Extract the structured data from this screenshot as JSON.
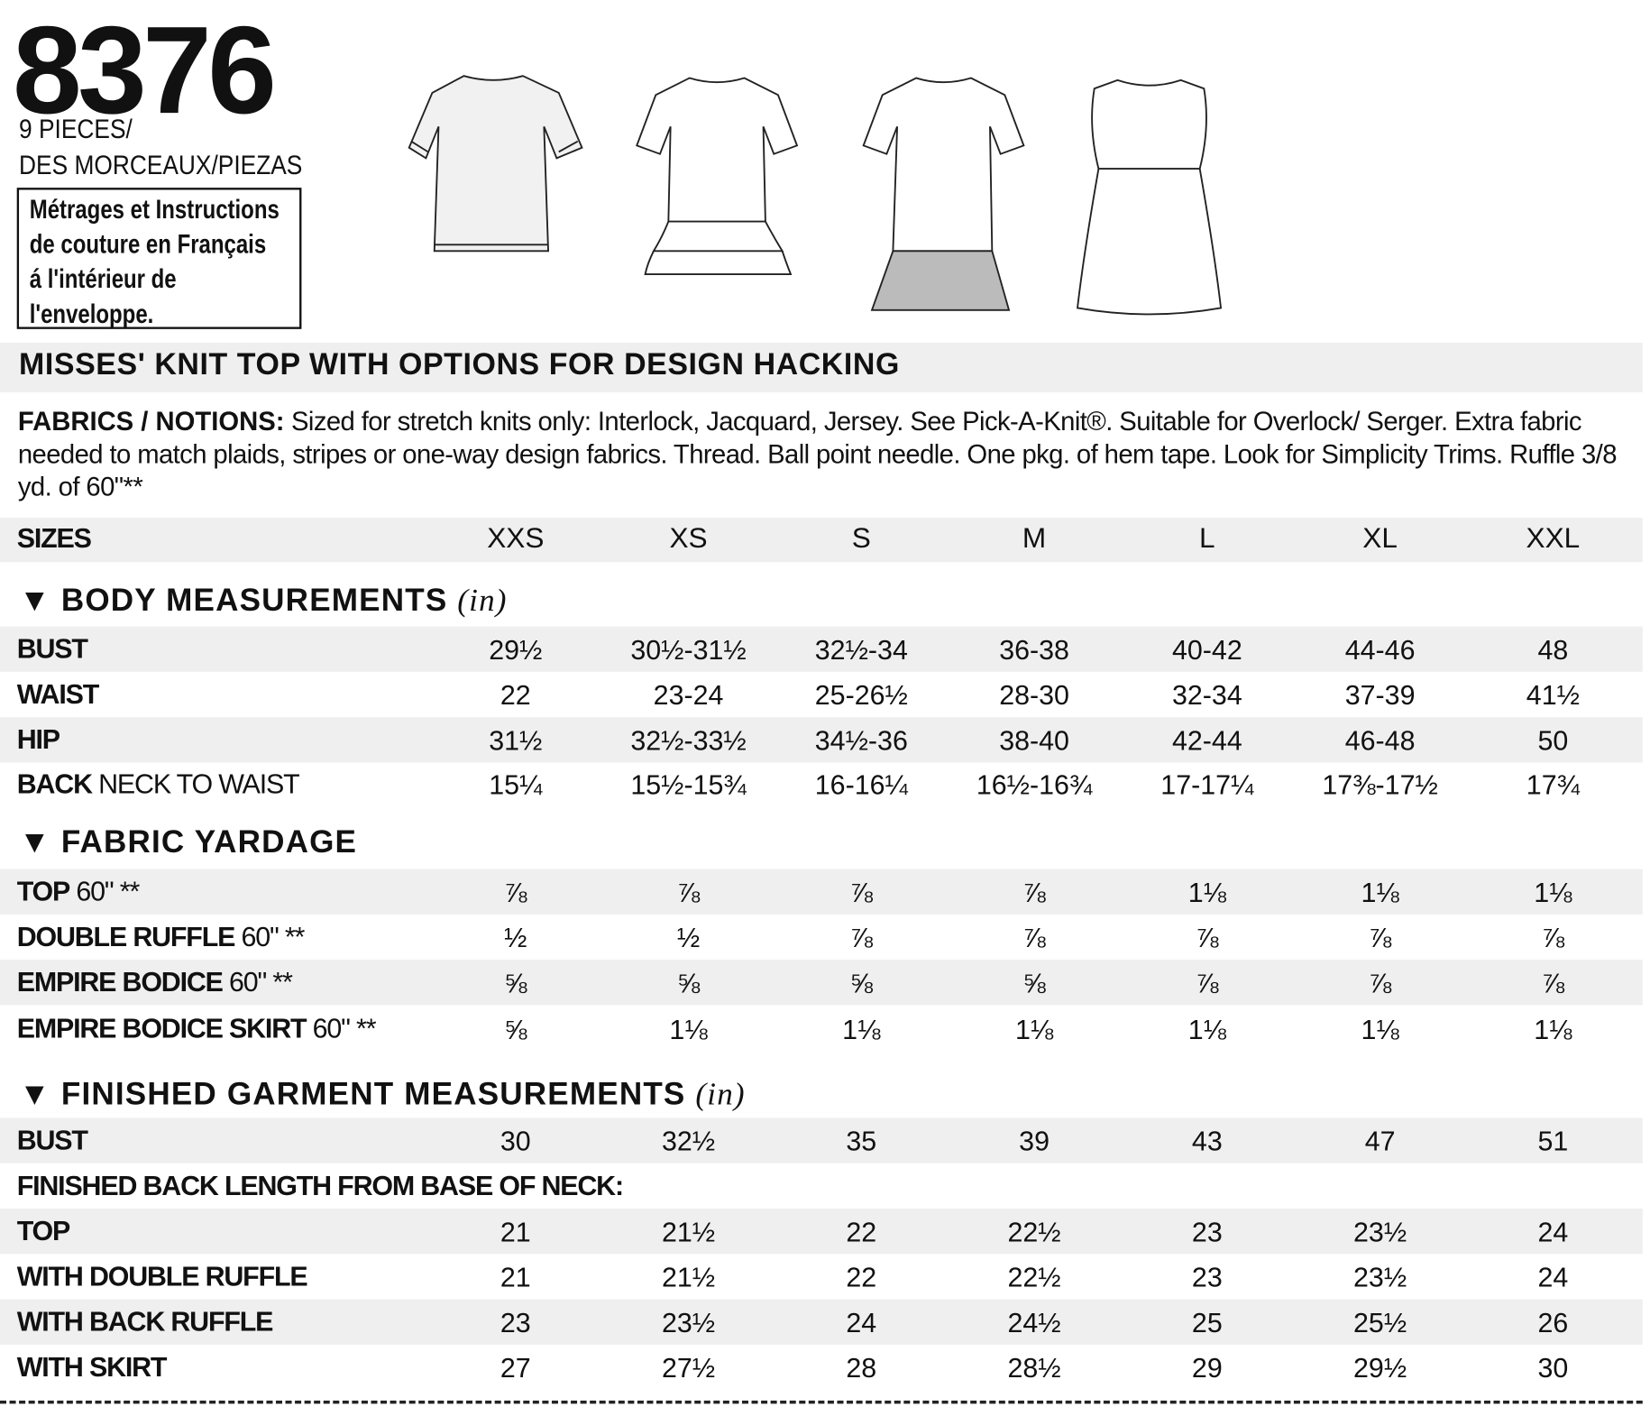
{
  "header": {
    "pattern_number": "8376",
    "pieces_line1": "9 PIECES/",
    "pieces_line2": "DES MORCEAUX/PIEZAS",
    "french_note": [
      "Métrages et Instructions",
      "de couture en Français",
      "á l'intérieur de",
      "l'enveloppe."
    ]
  },
  "illustrations": [
    "basic-knit-top",
    "top-with-double-ruffle",
    "top-with-back-ruffle",
    "empire-bodice-dress"
  ],
  "title": "MISSES' KNIT TOP WITH OPTIONS FOR DESIGN HACKING",
  "fabrics": {
    "label": "FABRICS / NOTIONS:",
    "text": " Sized for stretch knits only: Interlock, Jacquard, Jersey. See Pick-A-Knit®. Suitable for Overlock/ Serger. Extra fabric needed to match plaids, stripes or one-way design fabrics. Thread. Ball point needle. One pkg. of hem tape. Look for Simplicity Trims. Ruffle 3/8 yd. of 60\"**"
  },
  "sizes": {
    "label": "SIZES",
    "values": [
      "XXS",
      "XS",
      "S",
      "M",
      "L",
      "XL",
      "XXL"
    ]
  },
  "sections": [
    {
      "title": "▼ BODY MEASUREMENTS",
      "unit": "(in)",
      "rows": [
        {
          "label": "BUST",
          "suffix": "",
          "values": [
            "29½",
            "30½-31½",
            "32½-34",
            "36-38",
            "40-42",
            "44-46",
            "48"
          ]
        },
        {
          "label": "WAIST",
          "suffix": "",
          "values": [
            "22",
            "23-24",
            "25-26½",
            "28-30",
            "32-34",
            "37-39",
            "41½"
          ]
        },
        {
          "label": "HIP",
          "suffix": "",
          "values": [
            "31½",
            "32½-33½",
            "34½-36",
            "38-40",
            "42-44",
            "46-48",
            "50"
          ]
        },
        {
          "label": "BACK",
          "suffix": " NECK TO WAIST",
          "values": [
            "15¼",
            "15½-15¾",
            "16-16¼",
            "16½-16¾",
            "17-17¼",
            "17⅜-17½",
            "17¾"
          ]
        }
      ]
    },
    {
      "title": "▼ FABRIC YARDAGE",
      "unit": "",
      "rows": [
        {
          "label": "TOP",
          "suffix": " 60\" **",
          "values": [
            "⅞",
            "⅞",
            "⅞",
            "⅞",
            "1⅛",
            "1⅛",
            "1⅛"
          ]
        },
        {
          "label": "DOUBLE RUFFLE",
          "suffix": " 60\" **",
          "values": [
            "½",
            "½",
            "⅞",
            "⅞",
            "⅞",
            "⅞",
            "⅞"
          ]
        },
        {
          "label": "EMPIRE BODICE",
          "suffix": " 60\" **",
          "values": [
            "⅝",
            "⅝",
            "⅝",
            "⅝",
            "⅞",
            "⅞",
            "⅞"
          ]
        },
        {
          "label": "EMPIRE BODICE SKIRT",
          "suffix": " 60\" **",
          "values": [
            "⅝",
            "1⅛",
            "1⅛",
            "1⅛",
            "1⅛",
            "1⅛",
            "1⅛"
          ]
        }
      ]
    },
    {
      "title": "▼ FINISHED GARMENT MEASUREMENTS",
      "unit": "(in)",
      "rows": [
        {
          "label": "BUST",
          "suffix": "",
          "values": [
            "30",
            "32½",
            "35",
            "39",
            "43",
            "47",
            "51"
          ]
        },
        {
          "label": "FINISHED BACK LENGTH FROM BASE OF NECK:",
          "suffix": "",
          "values": []
        },
        {
          "label": "TOP",
          "suffix": "",
          "values": [
            "21",
            "21½",
            "22",
            "22½",
            "23",
            "23½",
            "24"
          ]
        },
        {
          "label": "WITH DOUBLE RUFFLE",
          "suffix": "",
          "values": [
            "21",
            "21½",
            "22",
            "22½",
            "23",
            "23½",
            "24"
          ]
        },
        {
          "label": "WITH BACK RUFFLE",
          "suffix": "",
          "values": [
            "23",
            "23½",
            "24",
            "24½",
            "25",
            "25½",
            "26"
          ]
        },
        {
          "label": "WITH SKIRT",
          "suffix": "",
          "values": [
            "27",
            "27½",
            "28",
            "28½",
            "29",
            "29½",
            "30"
          ]
        }
      ]
    }
  ]
}
